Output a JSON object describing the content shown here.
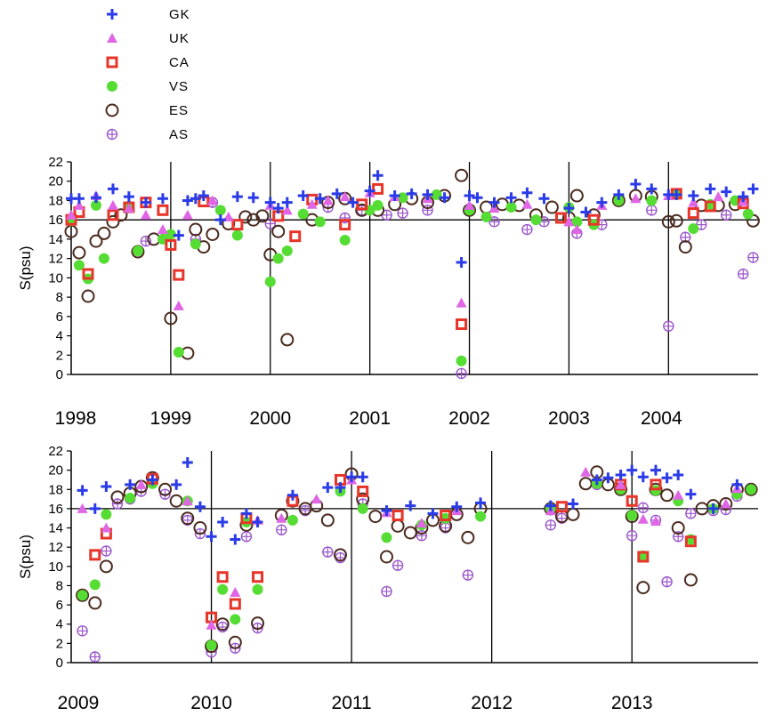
{
  "chart_data": [
    {
      "type": "scatter",
      "ylabel": "S(psu)",
      "xlim": [
        1998,
        2004.9
      ],
      "ylim": [
        0,
        22
      ],
      "yticks": [
        0,
        2,
        4,
        6,
        8,
        10,
        12,
        14,
        16,
        18,
        20,
        22
      ],
      "xtick_labels": [
        "1998",
        "1999",
        "2000",
        "2001",
        "2002",
        "2003",
        "2004"
      ],
      "reference_line_y": 16,
      "series": [
        {
          "name": "GK",
          "x": [
            1998.0,
            1998.08,
            1998.25,
            1998.42,
            1998.58,
            1998.75,
            1998.92,
            1999.08,
            1999.17,
            1999.25,
            1999.33,
            1999.5,
            1999.67,
            1999.83,
            2000.0,
            2000.08,
            2000.17,
            2000.33,
            2000.5,
            2000.67,
            2000.83,
            2001.0,
            2001.08,
            2001.25,
            2001.42,
            2001.58,
            2001.75,
            2001.92,
            2002.0,
            2002.08,
            2002.25,
            2002.42,
            2002.58,
            2002.75,
            2003.0,
            2003.17,
            2003.33,
            2003.5,
            2003.67,
            2003.83,
            2004.0,
            2004.08,
            2004.25,
            2004.42,
            2004.58,
            2004.75,
            2004.85
          ],
          "y": [
            18.2,
            18.2,
            18.3,
            19.2,
            18.4,
            17.8,
            18.2,
            14.4,
            18.0,
            18.2,
            18.5,
            16.0,
            18.4,
            18.3,
            17.8,
            17.2,
            17.8,
            18.5,
            18.2,
            18.7,
            17.8,
            19.0,
            20.6,
            18.5,
            18.7,
            18.6,
            18.3,
            11.6,
            18.5,
            18.3,
            17.8,
            18.3,
            18.8,
            18.2,
            17.2,
            16.8,
            17.8,
            18.6,
            19.7,
            19.2,
            18.6,
            18.6,
            18.5,
            19.2,
            18.9,
            18.4,
            19.2
          ]
        },
        {
          "name": "UK",
          "x": [
            1998.0,
            1998.08,
            1998.25,
            1998.42,
            1998.58,
            1998.75,
            1998.92,
            1999.08,
            1999.17,
            1999.42,
            1999.58,
            2000.0,
            2000.17,
            2000.42,
            2000.58,
            2000.75,
            2001.0,
            2001.25,
            2001.58,
            2001.92,
            2002.0,
            2002.25,
            2002.58,
            2003.0,
            2003.08,
            2003.33,
            2003.67,
            2004.0,
            2004.25,
            2004.5,
            2004.75
          ],
          "y": [
            16.5,
            17.5,
            18.5,
            17.5,
            17.2,
            16.5,
            15.0,
            7.1,
            16.5,
            18.0,
            16.3,
            17.5,
            17.0,
            17.6,
            18.0,
            18.4,
            18.8,
            18.4,
            18.2,
            7.4,
            17.5,
            17.2,
            17.6,
            15.8,
            15.0,
            17.5,
            18.2,
            18.5,
            17.8,
            18.4,
            17.9
          ]
        },
        {
          "name": "CA",
          "x": [
            1998.0,
            1998.08,
            1998.17,
            1998.42,
            1998.58,
            1998.75,
            1998.92,
            1999.0,
            1999.08,
            1999.33,
            1999.67,
            2000.08,
            2000.25,
            2000.42,
            2000.75,
            2000.92,
            2001.08,
            2001.92,
            2002.92,
            2003.25,
            2004.08,
            2004.25,
            2004.42,
            2004.75
          ],
          "y": [
            16.0,
            16.8,
            10.4,
            16.5,
            17.3,
            17.8,
            17.0,
            13.4,
            10.3,
            17.9,
            15.5,
            16.4,
            14.3,
            18.1,
            15.5,
            17.6,
            19.2,
            5.2,
            16.2,
            16.0,
            18.7,
            16.7,
            17.4,
            17.7
          ]
        },
        {
          "name": "VS",
          "x": [
            1998.0,
            1998.08,
            1998.17,
            1998.25,
            1998.33,
            1998.58,
            1998.67,
            1998.92,
            1999.0,
            1999.08,
            1999.25,
            1999.5,
            1999.67,
            2000.0,
            2000.08,
            2000.17,
            2000.33,
            2000.5,
            2000.75,
            2001.0,
            2001.08,
            2001.33,
            2001.67,
            2001.92,
            2002.0,
            2002.17,
            2002.42,
            2002.67,
            2003.0,
            2003.08,
            2003.25,
            2003.5,
            2003.83,
            2004.08,
            2004.25,
            2004.42,
            2004.67,
            2004.8
          ],
          "y": [
            15.9,
            11.3,
            9.9,
            17.5,
            12.0,
            17.4,
            12.8,
            14.0,
            14.5,
            2.3,
            13.5,
            17.0,
            14.4,
            9.6,
            12.0,
            12.8,
            16.6,
            15.8,
            13.9,
            17.0,
            17.5,
            18.3,
            18.6,
            1.4,
            17.0,
            16.3,
            17.3,
            16.0,
            17.3,
            15.8,
            15.5,
            18.0,
            18.0,
            18.6,
            15.1,
            17.6,
            18.0,
            16.6
          ]
        },
        {
          "name": "ES",
          "x": [
            1998.0,
            1998.08,
            1998.17,
            1998.25,
            1998.33,
            1998.42,
            1998.5,
            1998.67,
            1998.83,
            1999.0,
            1999.17,
            1999.25,
            1999.33,
            1999.42,
            1999.58,
            1999.75,
            1999.83,
            1999.92,
            2000.0,
            2000.08,
            2000.17,
            2000.42,
            2000.58,
            2000.75,
            2000.92,
            2001.08,
            2001.25,
            2001.42,
            2001.58,
            2001.75,
            2001.92,
            2002.0,
            2002.17,
            2002.33,
            2002.5,
            2002.67,
            2002.83,
            2003.0,
            2003.08,
            2003.25,
            2003.5,
            2003.67,
            2003.83,
            2004.0,
            2004.08,
            2004.17,
            2004.33,
            2004.5,
            2004.67,
            2004.85
          ],
          "y": [
            14.8,
            12.6,
            8.1,
            13.8,
            14.6,
            15.8,
            16.5,
            12.7,
            14.0,
            5.8,
            2.2,
            15.0,
            13.2,
            14.5,
            15.6,
            16.3,
            16.0,
            16.4,
            12.4,
            14.8,
            3.6,
            16.0,
            17.8,
            18.2,
            17.0,
            17.0,
            17.6,
            18.2,
            17.8,
            18.5,
            20.6,
            17.0,
            17.3,
            17.6,
            17.5,
            16.5,
            17.3,
            16.2,
            18.5,
            16.5,
            18.0,
            18.5,
            18.4,
            15.8,
            15.9,
            13.2,
            17.5,
            17.5,
            17.6,
            15.9
          ]
        },
        {
          "name": "AS",
          "x": [
            1998.75,
            1999.25,
            1999.42,
            2000.0,
            2000.58,
            2000.75,
            2000.92,
            2001.17,
            2001.33,
            2001.58,
            2001.92,
            2002.25,
            2002.58,
            2002.75,
            2003.08,
            2003.33,
            2003.83,
            2004.0,
            2004.17,
            2004.33,
            2004.58,
            2004.75,
            2004.85
          ],
          "y": [
            13.8,
            14.0,
            17.8,
            15.6,
            17.3,
            16.2,
            17.0,
            16.5,
            16.7,
            17.0,
            0.1,
            15.8,
            15.0,
            15.8,
            14.6,
            15.5,
            17.0,
            5.0,
            14.2,
            15.5,
            16.5,
            10.4,
            12.1
          ]
        }
      ]
    },
    {
      "type": "scatter",
      "ylabel": "S(psu)",
      "xlim": [
        2009,
        2013.9
      ],
      "ylim": [
        0,
        22
      ],
      "yticks": [
        0,
        2,
        4,
        6,
        8,
        10,
        12,
        14,
        16,
        18,
        20,
        22
      ],
      "xtick_labels": [
        "2009",
        "2010",
        "2011",
        "2012",
        "2013"
      ],
      "reference_line_y": 16,
      "series": [
        {
          "name": "GK",
          "x": [
            2009.08,
            2009.17,
            2009.25,
            2009.42,
            2009.58,
            2009.75,
            2009.83,
            2009.92,
            2010.0,
            2010.08,
            2010.17,
            2010.25,
            2010.33,
            2010.58,
            2010.83,
            2010.92,
            2011.0,
            2011.08,
            2011.25,
            2011.42,
            2011.58,
            2011.75,
            2011.92,
            2012.42,
            2012.58,
            2012.75,
            2012.83,
            2012.92,
            2013.0,
            2013.08,
            2013.17,
            2013.25,
            2013.33,
            2013.42,
            2013.58,
            2013.75
          ],
          "y": [
            17.9,
            16.0,
            18.3,
            18.5,
            19.0,
            18.5,
            20.8,
            16.2,
            13.1,
            14.6,
            12.8,
            15.5,
            14.6,
            17.4,
            18.2,
            18.2,
            19.3,
            19.3,
            15.8,
            16.3,
            15.5,
            16.2,
            16.6,
            16.3,
            16.5,
            19.0,
            19.2,
            19.5,
            20.0,
            19.3,
            20.0,
            19.2,
            19.5,
            17.5,
            16.0,
            18.5
          ]
        },
        {
          "name": "UK",
          "x": [
            2009.08,
            2009.25,
            2009.5,
            2009.83,
            2010.0,
            2010.17,
            2010.33,
            2010.5,
            2010.75,
            2011.0,
            2011.25,
            2011.5,
            2011.75,
            2012.42,
            2012.67,
            2012.92,
            2013.08,
            2013.17,
            2013.33,
            2013.67,
            2013.75
          ],
          "y": [
            16.0,
            14.0,
            18.5,
            16.8,
            3.9,
            7.3,
            14.8,
            15.0,
            17.0,
            19.0,
            15.6,
            14.5,
            15.8,
            15.8,
            19.8,
            18.5,
            14.9,
            14.7,
            17.4,
            16.5,
            18.1
          ]
        },
        {
          "name": "CA",
          "x": [
            2009.17,
            2009.25,
            2009.58,
            2010.0,
            2010.08,
            2010.17,
            2010.25,
            2010.33,
            2010.58,
            2010.92,
            2011.08,
            2011.33,
            2011.67,
            2012.5,
            2012.92,
            2013.0,
            2013.08,
            2013.17,
            2013.42
          ],
          "y": [
            11.2,
            13.4,
            19.1,
            4.7,
            8.9,
            6.1,
            15.0,
            8.9,
            16.8,
            19.0,
            17.8,
            15.3,
            15.3,
            16.2,
            18.5,
            16.8,
            11.0,
            18.5,
            12.6
          ]
        },
        {
          "name": "VS",
          "x": [
            2009.08,
            2009.17,
            2009.25,
            2009.42,
            2009.58,
            2009.83,
            2010.0,
            2010.08,
            2010.17,
            2010.25,
            2010.33,
            2010.58,
            2010.92,
            2011.08,
            2011.25,
            2011.5,
            2011.67,
            2011.92,
            2012.42,
            2012.75,
            2012.92,
            2013.0,
            2013.08,
            2013.17,
            2013.33,
            2013.42,
            2013.58,
            2013.75,
            2013.85
          ],
          "y": [
            7.0,
            8.1,
            15.4,
            17.1,
            18.6,
            16.8,
            1.8,
            7.6,
            4.5,
            14.6,
            7.6,
            14.8,
            17.8,
            16.0,
            13.0,
            14.3,
            15.0,
            15.2,
            16.0,
            18.6,
            18.0,
            15.3,
            11.1,
            17.9,
            16.8,
            12.8,
            16.0,
            17.5,
            18.0
          ]
        },
        {
          "name": "ES",
          "x": [
            2009.08,
            2009.17,
            2009.25,
            2009.33,
            2009.42,
            2009.5,
            2009.58,
            2009.67,
            2009.75,
            2009.83,
            2009.92,
            2010.0,
            2010.08,
            2010.17,
            2010.25,
            2010.33,
            2010.5,
            2010.58,
            2010.67,
            2010.75,
            2010.83,
            2010.92,
            2011.0,
            2011.08,
            2011.17,
            2011.25,
            2011.33,
            2011.42,
            2011.5,
            2011.58,
            2011.67,
            2011.75,
            2011.83,
            2011.92,
            2012.42,
            2012.5,
            2012.58,
            2012.67,
            2012.75,
            2012.83,
            2012.92,
            2013.0,
            2013.08,
            2013.17,
            2013.25,
            2013.33,
            2013.42,
            2013.5,
            2013.58,
            2013.67,
            2013.75,
            2013.85
          ],
          "y": [
            7.0,
            6.2,
            10.0,
            17.2,
            17.6,
            18.3,
            19.2,
            18.0,
            16.8,
            15.0,
            14.0,
            1.7,
            4.0,
            2.1,
            14.3,
            4.1,
            15.3,
            16.8,
            16.0,
            16.3,
            14.8,
            11.2,
            19.6,
            17.0,
            15.2,
            11.0,
            14.2,
            13.5,
            14.0,
            14.8,
            14.2,
            15.4,
            13.0,
            16.0,
            16.0,
            15.2,
            15.4,
            18.6,
            19.8,
            18.5,
            18.0,
            15.2,
            7.8,
            18.0,
            17.4,
            14.0,
            8.6,
            16.0,
            16.3,
            16.5,
            18.0,
            18.0
          ]
        },
        {
          "name": "AS",
          "x": [
            2009.08,
            2009.17,
            2009.25,
            2009.33,
            2009.42,
            2009.5,
            2009.67,
            2009.83,
            2009.92,
            2010.0,
            2010.08,
            2010.17,
            2010.25,
            2010.33,
            2010.5,
            2010.67,
            2010.83,
            2010.92,
            2011.08,
            2011.25,
            2011.33,
            2011.5,
            2011.67,
            2011.83,
            2012.42,
            2012.5,
            2012.75,
            2012.92,
            2013.0,
            2013.08,
            2013.17,
            2013.25,
            2013.33,
            2013.42,
            2013.58,
            2013.67,
            2013.75
          ],
          "y": [
            3.3,
            0.6,
            11.6,
            16.5,
            17.0,
            17.8,
            17.5,
            14.8,
            13.4,
            1.1,
            3.7,
            1.5,
            13.1,
            3.6,
            13.8,
            15.8,
            11.5,
            10.9,
            16.5,
            7.4,
            10.1,
            13.2,
            14.0,
            9.1,
            14.3,
            15.0,
            18.5,
            18.2,
            13.2,
            16.1,
            14.8,
            8.4,
            13.1,
            15.5,
            15.8,
            15.9,
            17.3
          ]
        }
      ]
    }
  ],
  "legend": [
    {
      "label": "GK",
      "marker": "plus",
      "color": "#2a3be8"
    },
    {
      "label": "UK",
      "marker": "triangle",
      "color": "#e066e6"
    },
    {
      "label": "CA",
      "marker": "square",
      "color": "#e8352a"
    },
    {
      "label": "VS",
      "marker": "dot",
      "color": "#55dd33"
    },
    {
      "label": "ES",
      "marker": "circle",
      "color": "#4a2a1e"
    },
    {
      "label": "AS",
      "marker": "circleplus",
      "color": "#9a55cc"
    }
  ]
}
